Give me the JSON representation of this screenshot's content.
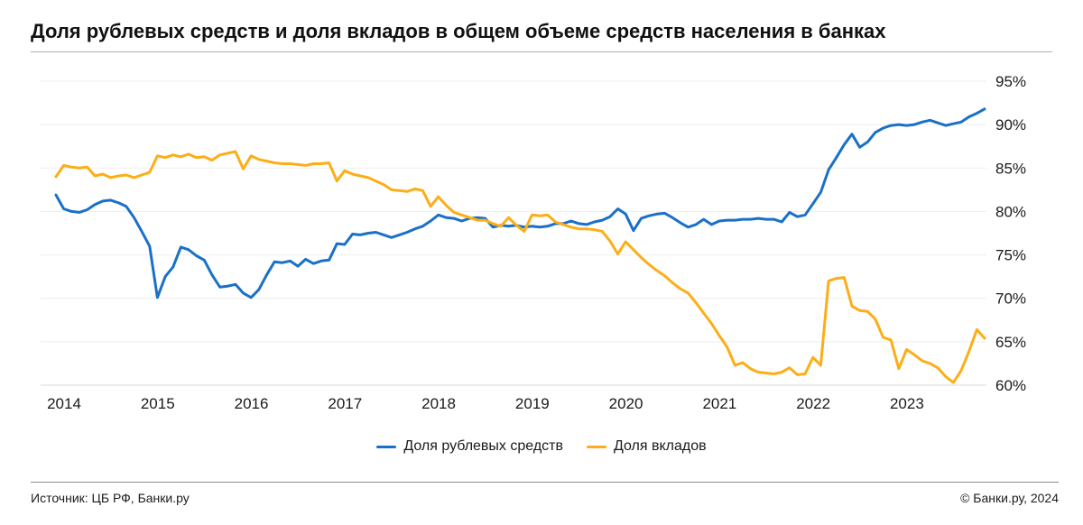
{
  "title": "Доля рублевых средств и доля вкладов в общем объеме средств населения в банках",
  "footer": {
    "source": "Источник: ЦБ РФ, Банки.ру",
    "copyright": "© Банки.ру, 2024"
  },
  "colors": {
    "ruble_line": "#1a70c8",
    "deposits_line": "#fcae17",
    "grid": "#ededed",
    "axis_bottom": "#d9d9d9",
    "text": "#1a1a1a",
    "title_rule": "#b0b0b0",
    "footer_rule": "#8f8f8f"
  },
  "chart_data": {
    "type": "line",
    "x_labels": [
      "2014",
      "2015",
      "2016",
      "2017",
      "2018",
      "2019",
      "2020",
      "2021",
      "2022",
      "2023"
    ],
    "x_frequency": "monthly",
    "ylim": [
      60,
      95
    ],
    "y_axis_side": "right",
    "grid": "horizontal",
    "legend_position": "bottom-center",
    "y_ticks": [
      {
        "value": 95,
        "label": "95%"
      },
      {
        "value": 90,
        "label": "90%"
      },
      {
        "value": 85,
        "label": "85%"
      },
      {
        "value": 80,
        "label": "80%"
      },
      {
        "value": 75,
        "label": "75%"
      },
      {
        "value": 70,
        "label": "70%"
      },
      {
        "value": 65,
        "label": "65%"
      },
      {
        "value": 60,
        "label": "60%"
      }
    ],
    "series": [
      {
        "name": "Доля рублевых средств",
        "color": "#1a70c8",
        "values": [
          81.9,
          80.3,
          80.0,
          79.9,
          80.2,
          80.8,
          81.2,
          81.3,
          81.0,
          80.6,
          79.3,
          77.7,
          76.0,
          70.1,
          72.5,
          73.6,
          75.9,
          75.6,
          74.9,
          74.4,
          72.7,
          71.3,
          71.4,
          71.6,
          70.6,
          70.1,
          71.0,
          72.7,
          74.2,
          74.1,
          74.3,
          73.7,
          74.5,
          74.0,
          74.3,
          74.4,
          76.3,
          76.2,
          77.4,
          77.3,
          77.5,
          77.6,
          77.3,
          77.0,
          77.3,
          77.6,
          78.0,
          78.3,
          78.9,
          79.6,
          79.3,
          79.2,
          78.9,
          79.2,
          79.3,
          79.2,
          78.2,
          78.4,
          78.3,
          78.4,
          78.2,
          78.3,
          78.2,
          78.3,
          78.6,
          78.6,
          78.9,
          78.6,
          78.5,
          78.8,
          79.0,
          79.4,
          80.3,
          79.7,
          77.8,
          79.2,
          79.5,
          79.7,
          79.8,
          79.3,
          78.7,
          78.2,
          78.5,
          79.1,
          78.5,
          78.9,
          79.0,
          79.0,
          79.1,
          79.1,
          79.2,
          79.1,
          79.1,
          78.8,
          79.9,
          79.4,
          79.6,
          80.9,
          82.2,
          84.8,
          86.2,
          87.7,
          88.9,
          87.4,
          88.0,
          89.1,
          89.6,
          89.9,
          90.0,
          89.9,
          90.0,
          90.3,
          90.5,
          90.2,
          89.9,
          90.1,
          90.3,
          90.9,
          91.3,
          91.8
        ]
      },
      {
        "name": "Доля вкладов",
        "color": "#fcae17",
        "values": [
          84.0,
          85.3,
          85.1,
          85.0,
          85.1,
          84.1,
          84.3,
          83.9,
          84.1,
          84.2,
          83.9,
          84.2,
          84.5,
          86.4,
          86.2,
          86.5,
          86.3,
          86.6,
          86.2,
          86.3,
          85.9,
          86.5,
          86.7,
          86.9,
          84.9,
          86.4,
          86.0,
          85.8,
          85.6,
          85.5,
          85.5,
          85.4,
          85.3,
          85.5,
          85.5,
          85.6,
          83.5,
          84.7,
          84.3,
          84.1,
          83.9,
          83.5,
          83.1,
          82.5,
          82.4,
          82.3,
          82.6,
          82.4,
          80.6,
          81.7,
          80.7,
          79.9,
          79.6,
          79.3,
          79.0,
          79.0,
          78.6,
          78.3,
          79.3,
          78.4,
          77.7,
          79.6,
          79.5,
          79.6,
          78.8,
          78.5,
          78.2,
          78.0,
          78.0,
          77.9,
          77.7,
          76.6,
          75.1,
          76.5,
          75.6,
          74.7,
          73.9,
          73.2,
          72.6,
          71.8,
          71.1,
          70.6,
          69.5,
          68.3,
          67.1,
          65.7,
          64.4,
          62.3,
          62.6,
          61.9,
          61.5,
          61.4,
          61.3,
          61.5,
          62.0,
          61.2,
          61.3,
          63.2,
          62.3,
          72.0,
          72.3,
          72.4,
          69.1,
          68.6,
          68.5,
          67.6,
          65.5,
          65.2,
          61.9,
          64.1,
          63.5,
          62.8,
          62.5,
          62.0,
          61.0,
          60.3,
          61.7,
          63.9,
          66.4,
          65.4
        ]
      }
    ]
  }
}
